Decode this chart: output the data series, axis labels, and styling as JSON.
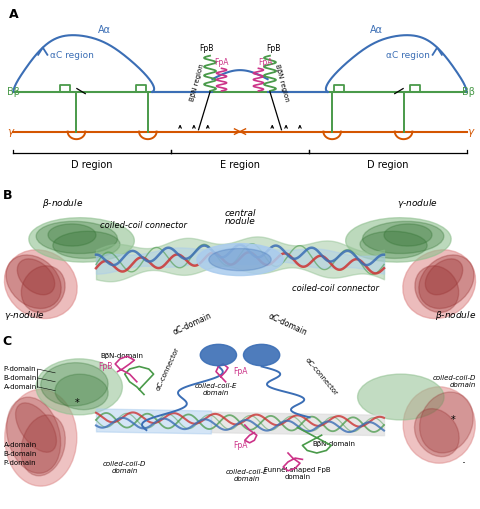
{
  "colors": {
    "blue": "#3b6eb5",
    "blue_dark": "#2a5090",
    "green": "#4a9a4a",
    "green_dark": "#2d6e2d",
    "red": "#cc3333",
    "red_dark": "#993333",
    "pink": "#cc3388",
    "orange_red": "#d45500",
    "black": "#000000",
    "gray": "#aaaaaa",
    "gray_dark": "#888888",
    "light_blue": "#aaccee",
    "light_blue2": "#7fb3e8",
    "light_green": "#90c090",
    "light_red": "#e09090",
    "light_gray": "#dddddd"
  },
  "panel_A_ylim": [
    0,
    10
  ],
  "panel_A_xlim": [
    0,
    10
  ]
}
